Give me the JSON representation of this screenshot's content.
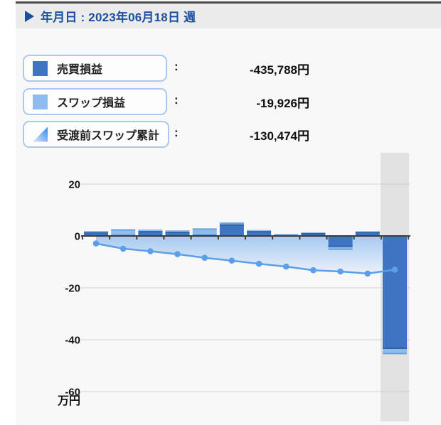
{
  "header": {
    "icon": "play-icon",
    "text": "年月日 : 2023年06月18日 週"
  },
  "legend": {
    "items": [
      {
        "icon": "trade-bar-swatch-icon",
        "label": "売買損益",
        "colon": ":",
        "value": "-435,788円",
        "color": "#3E74C2"
      },
      {
        "icon": "swap-bar-swatch-icon",
        "label": "スワップ損益",
        "colon": ":",
        "value": "-19,926円",
        "color": "#8FBCEA"
      },
      {
        "icon": "swap-cumulative-area-icon",
        "label": "受渡前スワップ累計",
        "colon": ":",
        "value": "-130,474円",
        "color": "#4E96EC",
        "color2": "#C6DEF7"
      }
    ]
  },
  "chart_data": {
    "type": "bar+line",
    "title": "",
    "xlabel": "",
    "ylabel": "万円",
    "unit": "万円",
    "yticks": [
      20,
      0,
      -20,
      -40,
      -60
    ],
    "ylim": [
      -73,
      33
    ],
    "grid": true,
    "x_count": 12,
    "highlighted_index": 11,
    "axis_color": "#3C3C3C",
    "gridline_color": "#CFCFCF",
    "highlight_color": "#E2E2E2",
    "series": [
      {
        "name": "売買損益",
        "type": "bar",
        "stack": "pl",
        "color": "#3E74C2",
        "cap_color": "#2E62AE",
        "values": [
          1.5,
          0.4,
          1.9,
          1.7,
          0.6,
          4.5,
          1.9,
          0.4,
          1.1,
          -4.3,
          1.6,
          -43.6
        ]
      },
      {
        "name": "スワップ損益",
        "type": "bar",
        "stack": "pl",
        "color": "#8FBCEA",
        "cap_color": "#6CA4DC",
        "values": [
          0.4,
          2.2,
          0.6,
          0.5,
          2.3,
          0.7,
          0.4,
          0.4,
          0.3,
          -1.1,
          0.2,
          -2.0
        ]
      },
      {
        "name": "受渡前スワップ累計",
        "type": "line",
        "color": "#5B9FEA",
        "area_gradient": [
          "#A6CAF1",
          "#ECF1F9"
        ],
        "values": [
          -2.9,
          -4.9,
          -5.9,
          -7.0,
          -8.4,
          -9.5,
          -10.7,
          -11.8,
          -13.2,
          -13.7,
          -14.5,
          -13.0
        ]
      }
    ]
  }
}
